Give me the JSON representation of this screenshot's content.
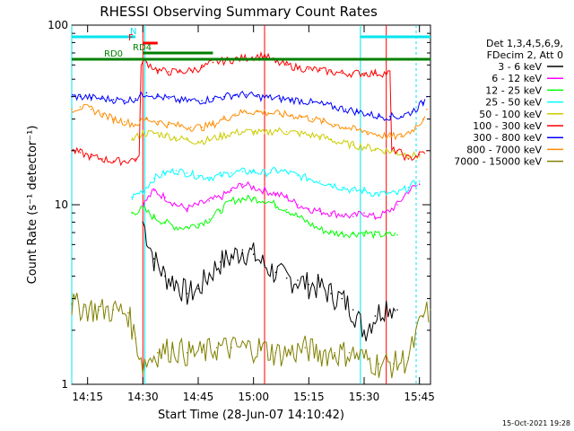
{
  "chart_data": {
    "type": "line",
    "title": "RHESSI Observing Summary Count Rates",
    "xlabel": "Start Time (28-Jun-07 14:10:42)",
    "ylabel": "Count Rate (s⁻¹ detector⁻¹)",
    "yscale": "log",
    "ylim": [
      1,
      100
    ],
    "xlim": [
      "14:10:42",
      "15:48:00"
    ],
    "x_ticks": [
      "14:15",
      "14:30",
      "14:45",
      "15:00",
      "15:15",
      "15:30",
      "15:45"
    ],
    "y_ticks": [
      "1",
      "10",
      "100"
    ],
    "timestamp": "15-Oct-2021 19:28",
    "legend_position": "right",
    "legend_header": [
      "Det 1,3,4,5,6,9,",
      "FDecim 2, Att 0"
    ],
    "flags": [
      {
        "label": "N",
        "color": "#00e5ee",
        "segments": [
          [
            "14:10:42",
            "14:28:00"
          ],
          [
            "15:29:00",
            "15:48:00"
          ]
        ]
      },
      {
        "label": "F",
        "color": "#ff0000",
        "segments": [
          [
            "14:30:00",
            "14:34:00"
          ]
        ]
      },
      {
        "label": "RD0",
        "color": "#008000",
        "segments": [
          [
            "14:10:42",
            "15:48:00"
          ]
        ]
      },
      {
        "label": "RD4",
        "color": "#008000",
        "segments": [
          [
            "14:30:00",
            "14:49:00"
          ]
        ]
      }
    ],
    "night_bounds": [
      {
        "color": "#00e5ee",
        "times": [
          "14:10:42",
          "14:30:30",
          "15:29:00"
        ]
      },
      {
        "color": "#ff0000",
        "times": [
          "14:30:00",
          "15:03:00",
          "15:36:00"
        ]
      }
    ],
    "series": [
      {
        "name": "3 - 6 keV",
        "color": "#000000",
        "x": [
          "14:30:00",
          "14:33:00",
          "14:36:00",
          "14:39:00",
          "14:42:00",
          "14:45:00",
          "14:48:00",
          "14:51:00",
          "14:54:00",
          "14:57:00",
          "15:00:00",
          "15:03:00",
          "15:06:00",
          "15:09:00",
          "15:12:00",
          "15:15:00",
          "15:18:00",
          "15:21:00",
          "15:24:00",
          "15:27:00",
          "15:30:00",
          "15:33:00",
          "15:36:00",
          "15:39:00"
        ],
        "y": [
          8,
          5,
          4,
          3.7,
          3.2,
          3.4,
          4.1,
          4.8,
          5.1,
          5.6,
          5.3,
          4.6,
          4.2,
          3.9,
          3.8,
          3.6,
          3.5,
          3.2,
          3.0,
          2.6,
          2.0,
          2.4,
          2.8,
          2.6
        ]
      },
      {
        "name": "6 - 12 keV",
        "color": "#ff00ff",
        "x": [
          "14:30:00",
          "14:33:00",
          "14:36:00",
          "14:39:00",
          "14:42:00",
          "14:45:00",
          "14:48:00",
          "14:51:00",
          "14:54:00",
          "14:57:00",
          "15:00:00",
          "15:03:00",
          "15:06:00",
          "15:09:00",
          "15:12:00",
          "15:15:00",
          "15:18:00",
          "15:21:00",
          "15:24:00",
          "15:27:00",
          "15:30:00",
          "15:33:00",
          "15:36:00",
          "15:39:00",
          "15:42:00",
          "15:45:00"
        ],
        "y": [
          10,
          12,
          11,
          10,
          9.5,
          10,
          10.5,
          11,
          12,
          13,
          12.5,
          12,
          11.5,
          11,
          10,
          9.5,
          9.2,
          9,
          8.8,
          8.6,
          9,
          8.5,
          9,
          10,
          12,
          13
        ]
      },
      {
        "name": "12 - 25 keV",
        "color": "#00ff00",
        "x": [
          "14:27:00",
          "14:30:00",
          "14:33:00",
          "14:36:00",
          "14:39:00",
          "14:42:00",
          "14:45:00",
          "14:48:00",
          "14:51:00",
          "14:54:00",
          "14:57:00",
          "15:00:00",
          "15:03:00",
          "15:06:00",
          "15:09:00",
          "15:12:00",
          "15:15:00",
          "15:18:00",
          "15:21:00",
          "15:24:00",
          "15:27:00",
          "15:30:00",
          "15:33:00",
          "15:36:00",
          "15:39:00"
        ],
        "y": [
          9,
          9.5,
          8.5,
          8,
          7.5,
          7.5,
          7.8,
          8.3,
          9.3,
          10.5,
          10.8,
          10.8,
          10.6,
          10,
          9.4,
          8.6,
          7.9,
          7.3,
          7,
          6.9,
          6.9,
          7,
          6.8,
          6.8,
          6.8
        ]
      },
      {
        "name": "25 - 50 keV",
        "color": "#00ffff",
        "x": [
          "14:27:00",
          "14:30:00",
          "14:33:00",
          "14:36:00",
          "14:39:00",
          "14:42:00",
          "14:45:00",
          "14:48:00",
          "14:51:00",
          "14:54:00",
          "14:57:00",
          "15:00:00",
          "15:03:00",
          "15:06:00",
          "15:09:00",
          "15:12:00",
          "15:15:00",
          "15:18:00",
          "15:21:00",
          "15:24:00",
          "15:27:00",
          "15:30:00",
          "15:33:00",
          "15:36:00",
          "15:39:00",
          "15:42:00",
          "15:45:00"
        ],
        "y": [
          11,
          12,
          14,
          15,
          15.5,
          15,
          14.5,
          14.2,
          14.5,
          15,
          15.3,
          15.3,
          15,
          15.5,
          15.2,
          14.5,
          14,
          13.5,
          13,
          12.5,
          12,
          12,
          11.5,
          11.5,
          11.5,
          12.5,
          13.5
        ]
      },
      {
        "name": "50 - 100 keV",
        "color": "#cccc00",
        "x": [
          "14:27:00",
          "14:30:00",
          "14:33:00",
          "14:36:00",
          "14:39:00",
          "14:42:00",
          "14:45:00",
          "14:48:00",
          "14:51:00",
          "14:54:00",
          "14:57:00",
          "15:00:00",
          "15:03:00",
          "15:06:00",
          "15:09:00",
          "15:12:00",
          "15:15:00",
          "15:18:00",
          "15:21:00",
          "15:24:00",
          "15:27:00",
          "15:30:00",
          "15:33:00",
          "15:36:00",
          "15:39:00",
          "15:42:00",
          "15:45:00"
        ],
        "y": [
          23,
          25,
          25,
          24.5,
          23.5,
          23,
          22.5,
          23,
          24,
          25,
          25.5,
          25.5,
          25,
          26,
          25.5,
          25,
          24.5,
          24,
          23,
          22,
          21.5,
          21,
          20.5,
          20,
          19.5,
          19,
          18.5
        ]
      },
      {
        "name": "100 - 300 keV",
        "color": "#ff0000",
        "x": [
          "14:10:42",
          "14:13:00",
          "14:16:00",
          "14:19:00",
          "14:22:00",
          "14:25:00",
          "14:28:00",
          "14:31:00",
          "14:34:00",
          "14:37:00",
          "14:40:00",
          "14:43:00",
          "14:46:00",
          "14:49:00",
          "15:03:00",
          "15:06:00",
          "15:09:00",
          "15:12:00",
          "15:15:00",
          "15:18:00",
          "15:21:00",
          "15:24:00",
          "15:27:00",
          "15:30:00",
          "15:33:00",
          "15:36:00",
          "15:39:00",
          "15:42:00",
          "15:45:00",
          "15:47:00"
        ],
        "y": [
          20,
          19.5,
          18.5,
          18,
          17.5,
          17.5,
          18,
          62,
          56,
          55,
          55,
          56,
          58,
          62,
          68,
          62,
          60,
          58,
          57,
          56,
          55,
          54,
          54,
          54,
          54,
          54,
          20,
          18,
          19,
          20
        ]
      },
      {
        "name": "300 - 800 keV",
        "color": "#0000ff",
        "x": [
          "14:10:42",
          "14:13:00",
          "14:16:00",
          "14:19:00",
          "14:22:00",
          "14:25:00",
          "14:28:00",
          "14:31:00",
          "14:34:00",
          "14:37:00",
          "14:40:00",
          "14:43:00",
          "14:46:00",
          "14:49:00",
          "14:52:00",
          "14:55:00",
          "14:58:00",
          "15:01:00",
          "15:04:00",
          "15:07:00",
          "15:10:00",
          "15:13:00",
          "15:16:00",
          "15:19:00",
          "15:22:00",
          "15:25:00",
          "15:28:00",
          "15:31:00",
          "15:34:00",
          "15:37:00",
          "15:40:00",
          "15:43:00",
          "15:46:00",
          "15:47:00"
        ],
        "y": [
          40,
          40,
          39.5,
          39,
          38.5,
          38,
          39,
          42,
          40,
          39,
          38,
          38,
          38,
          39,
          40,
          41,
          41,
          40,
          39.5,
          39,
          38.5,
          38,
          37,
          36,
          35,
          34,
          33,
          32,
          31,
          31,
          31,
          33,
          37,
          40
        ]
      },
      {
        "name": "800 - 7000 keV",
        "color": "#ff8c00",
        "x": [
          "14:10:42",
          "14:13:00",
          "14:16:00",
          "14:19:00",
          "14:22:00",
          "14:25:00",
          "14:28:00",
          "14:31:00",
          "14:34:00",
          "14:37:00",
          "14:40:00",
          "14:43:00",
          "14:46:00",
          "14:49:00",
          "14:52:00",
          "14:55:00",
          "14:58:00",
          "15:01:00",
          "15:04:00",
          "15:07:00",
          "15:10:00",
          "15:13:00",
          "15:16:00",
          "15:19:00",
          "15:22:00",
          "15:25:00",
          "15:28:00",
          "15:31:00",
          "15:34:00",
          "15:37:00",
          "15:40:00",
          "15:43:00",
          "15:46:00",
          "15:47:00"
        ],
        "y": [
          34,
          35,
          34,
          32,
          30,
          29,
          28,
          30,
          29,
          28,
          27.5,
          27,
          27,
          28,
          30,
          32,
          33,
          33,
          32.5,
          32,
          31.5,
          31,
          30,
          29,
          28,
          27,
          26,
          25.5,
          24.5,
          24,
          24,
          26,
          30,
          34
        ]
      },
      {
        "name": "7000 - 15000 keV",
        "color": "#808000",
        "x": [
          "14:10:42",
          "14:14:00",
          "14:18:00",
          "14:22:00",
          "14:26:00",
          "14:28:00",
          "14:30:00",
          "14:34:00",
          "14:38:00",
          "14:42:00",
          "14:46:00",
          "14:50:00",
          "14:54:00",
          "14:58:00",
          "15:02:00",
          "15:06:00",
          "15:10:00",
          "15:14:00",
          "15:18:00",
          "15:22:00",
          "15:26:00",
          "15:30:00",
          "15:34:00",
          "15:38:00",
          "15:42:00",
          "15:46:00",
          "15:48:00"
        ],
        "y": [
          2.8,
          2.7,
          2.6,
          2.6,
          2.5,
          1.8,
          1.3,
          1.5,
          1.6,
          1.5,
          1.5,
          1.6,
          1.6,
          1.6,
          1.6,
          1.5,
          1.5,
          1.6,
          1.5,
          1.5,
          1.5,
          1.4,
          1.3,
          1.3,
          1.4,
          2.4,
          2.6
        ]
      }
    ]
  }
}
